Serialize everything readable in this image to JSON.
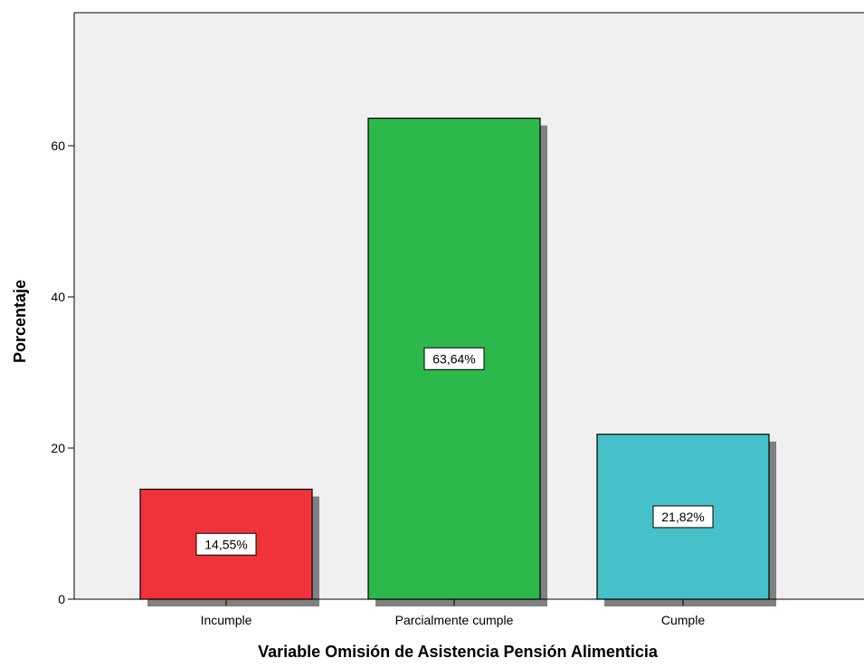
{
  "chart_data": {
    "type": "bar",
    "title": "",
    "xlabel": "Variable Omisión de Asistencia Pensión Alimenticia",
    "ylabel": "Porcentaje",
    "categories": [
      "Incumple",
      "Parcialmente cumple",
      "Cumple"
    ],
    "values": [
      14.55,
      63.64,
      21.82
    ],
    "data_labels": [
      "14,55%",
      "63,64%",
      "21,82%"
    ],
    "colors": [
      "#f0333a",
      "#2db84b",
      "#47c1c9"
    ],
    "ylim": [
      0,
      78
    ],
    "yticks": [
      0,
      20,
      40,
      60
    ],
    "ytick_labels": [
      "0",
      "20",
      "40",
      "60"
    ],
    "grid": false,
    "legend": "none",
    "plot_background": "#f0f0f0",
    "shadow_color": "#808080"
  }
}
